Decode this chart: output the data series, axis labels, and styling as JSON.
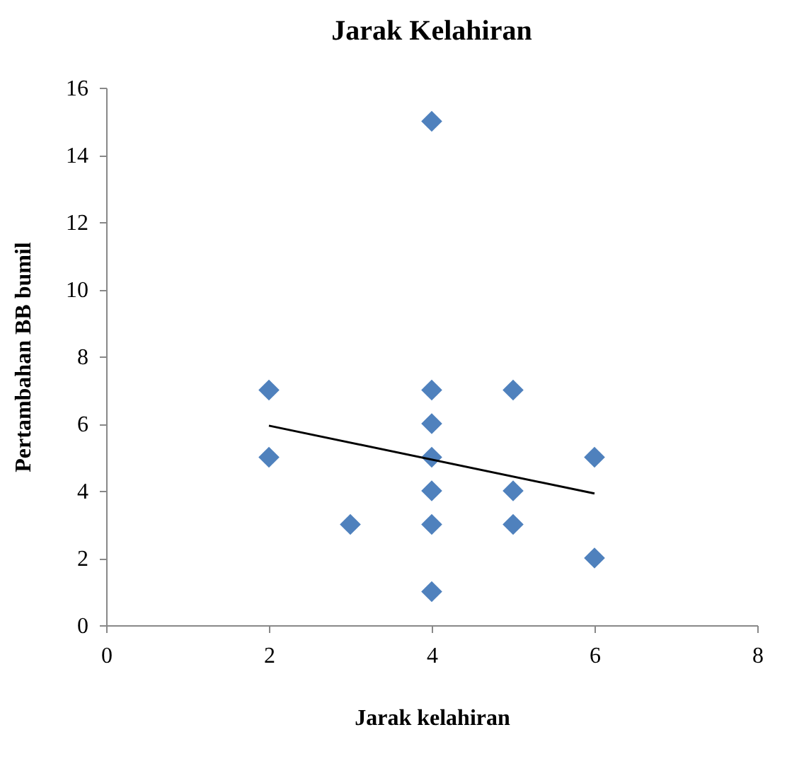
{
  "chart_data": {
    "type": "scatter",
    "title": "Jarak Kelahiran",
    "xlabel": "Jarak kelahiran",
    "ylabel": "Pertambahan BB bumil",
    "series": [
      {
        "color": "#4f81bd",
        "marker": "diamond",
        "x": [
          2,
          2,
          3,
          4,
          4,
          4,
          4,
          4,
          4,
          4,
          5,
          5,
          5,
          6,
          6
        ],
        "values": [
          7,
          5,
          3,
          15,
          7,
          6,
          5,
          4,
          3,
          1,
          7,
          4,
          3,
          5,
          2
        ]
      },
      {
        "type": "line",
        "color": "#000000",
        "x": [
          2,
          6
        ],
        "values": [
          5.94,
          3.92
        ]
      }
    ],
    "xlim": [
      0,
      8
    ],
    "xticks": [
      0,
      2,
      4,
      6,
      8
    ],
    "ylim": [
      0,
      16
    ],
    "yticks": [
      0,
      2,
      4,
      6,
      8,
      10,
      12,
      14,
      16
    ],
    "grid": false
  }
}
